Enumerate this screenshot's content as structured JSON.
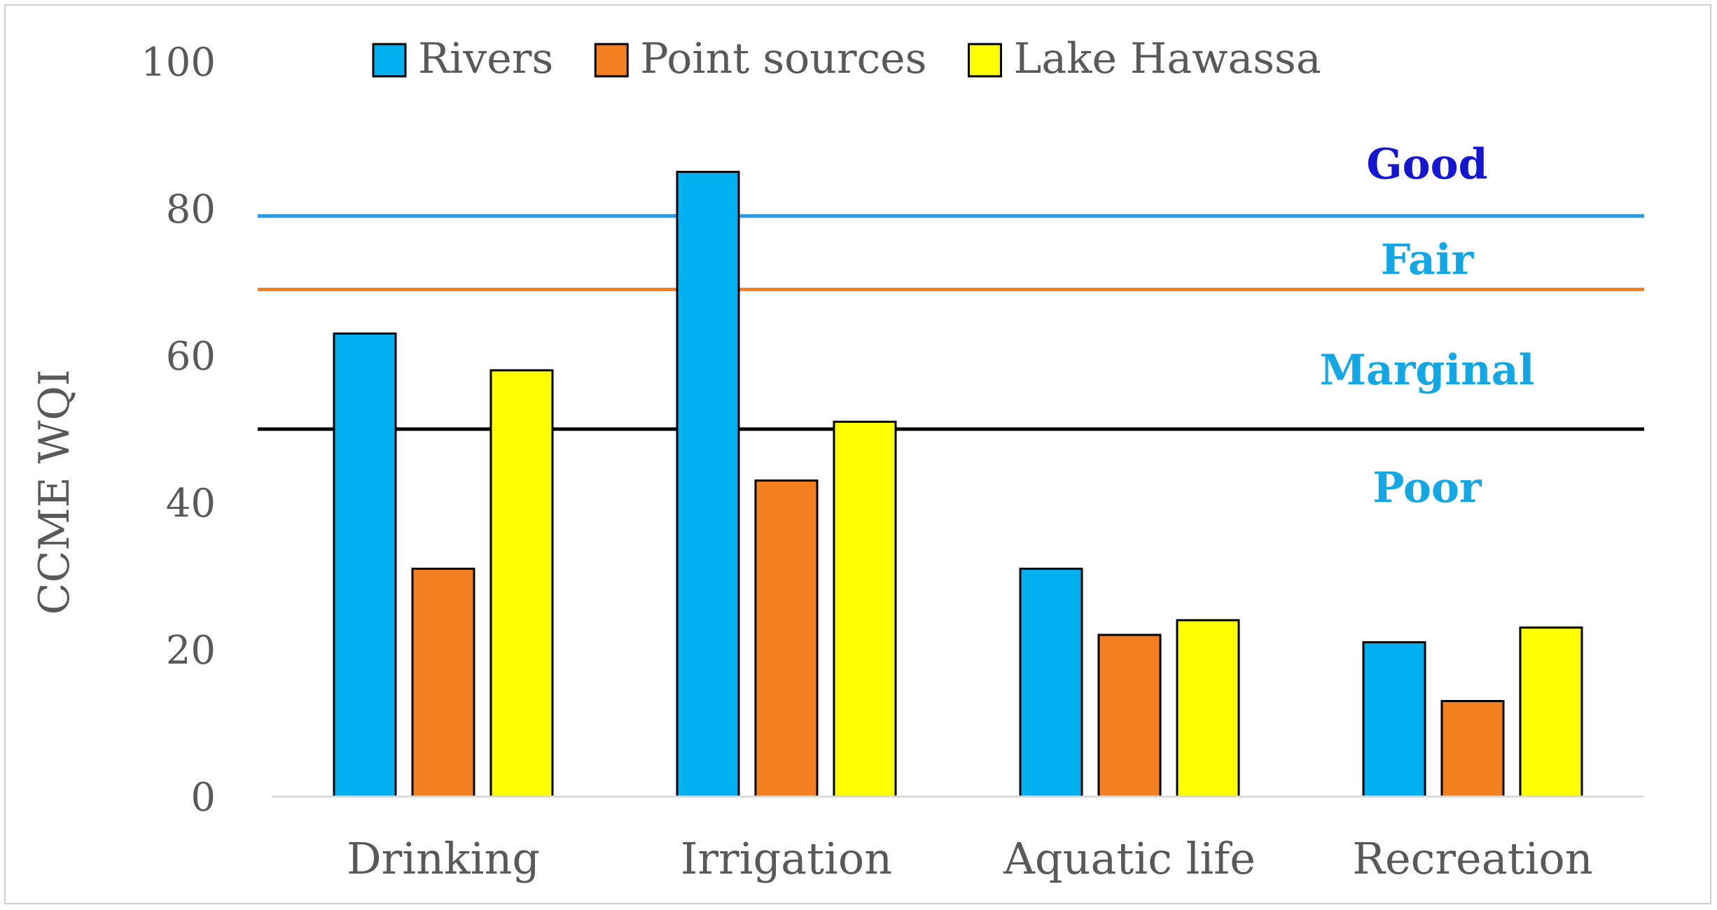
{
  "chart_data": {
    "type": "bar",
    "title": "",
    "xlabel": "",
    "ylabel": "CCME WQI",
    "ylim": [
      0,
      100
    ],
    "yticks": [
      0,
      20,
      40,
      60,
      80,
      100
    ],
    "grid": false,
    "legend_position": "top",
    "categories": [
      "Drinking",
      "Irrigation",
      "Aquatic life",
      "Recreation"
    ],
    "series": [
      {
        "name": "Rivers",
        "color": "#00b0f0",
        "values": [
          63,
          85,
          31,
          21
        ]
      },
      {
        "name": "Point sources",
        "color": "#f47f20",
        "values": [
          31,
          43,
          22,
          13
        ]
      },
      {
        "name": "Lake Hawassa",
        "color": "#ffff00",
        "values": [
          58,
          51,
          24,
          23
        ]
      }
    ],
    "reference_lines": [
      {
        "name": "good-threshold",
        "value": 79,
        "color": "#2e9ae0"
      },
      {
        "name": "fair-threshold",
        "value": 69,
        "color": "#f47f20"
      },
      {
        "name": "poor-threshold",
        "value": 50,
        "color": "#000000"
      }
    ],
    "annotations": [
      {
        "text": "Good",
        "value": 86,
        "color": "#1515d4"
      },
      {
        "text": "Fair",
        "value": 73,
        "color": "#12a8e6"
      },
      {
        "text": "Marginal",
        "value": 58,
        "color": "#12a8e6"
      },
      {
        "text": "Poor",
        "value": 42,
        "color": "#12a8e6"
      }
    ]
  }
}
